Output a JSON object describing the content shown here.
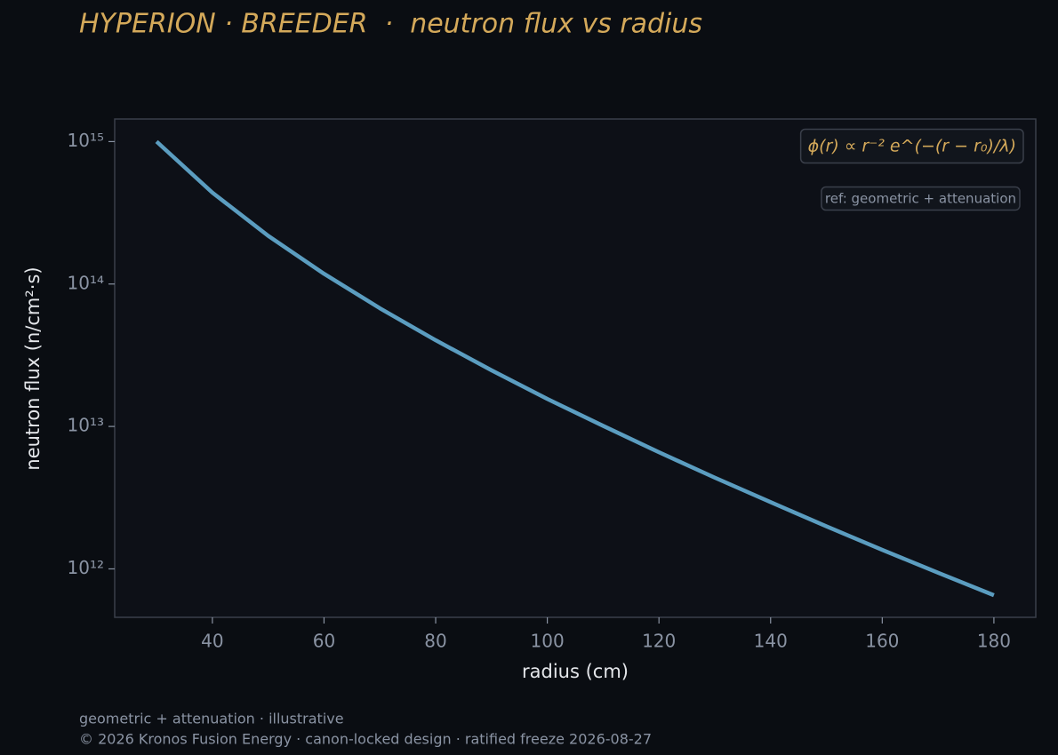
{
  "chart_data": {
    "type": "line",
    "title": "HYPERION · BREEDER  ·  neutron flux vs radius",
    "x_label": "radius (cm)",
    "y_label": "neutron flux (n/cm²·s)",
    "x": [
      30,
      40,
      50,
      60,
      70,
      80,
      90,
      100,
      110,
      120,
      130,
      140,
      150,
      160,
      170,
      180
    ],
    "values": [
      1000000000000000.0,
      438000000000000.0,
      218000000000000.0,
      118000000000000.0,
      67600000000000.0,
      40300000000000.0,
      24800000000000.0,
      15600000000000.0,
      10100000000000.0,
      6590000000000.0,
      4370000000000.0,
      2940000000000.0,
      1990000000000.0,
      1360000000000.0,
      940000000000.0,
      653000000000.0
    ],
    "color": "#5b9dc0",
    "log_y": true,
    "xlim": [
      22.5,
      187.5
    ],
    "ylim": [
      457000000000.0,
      1440000000000000.0
    ],
    "xticks": [
      40,
      60,
      80,
      100,
      120,
      140,
      160,
      180
    ],
    "yticks": [
      {
        "value": 1000000000000.0,
        "label": "10¹²"
      },
      {
        "value": 10000000000000.0,
        "label": "10¹³"
      },
      {
        "value": 100000000000000.0,
        "label": "10¹⁴"
      },
      {
        "value": 1000000000000000.0,
        "label": "10¹⁵"
      }
    ],
    "annotations": [
      "ϕ(r) ∝ r⁻² e^(−(r − r₀)/λ)",
      "ref: geometric + attenuation"
    ],
    "footer": [
      "geometric + attenuation · illustrative",
      "© 2026 Kronos Fusion Energy · canon-locked design · ratified freeze 2026-08-27"
    ]
  }
}
